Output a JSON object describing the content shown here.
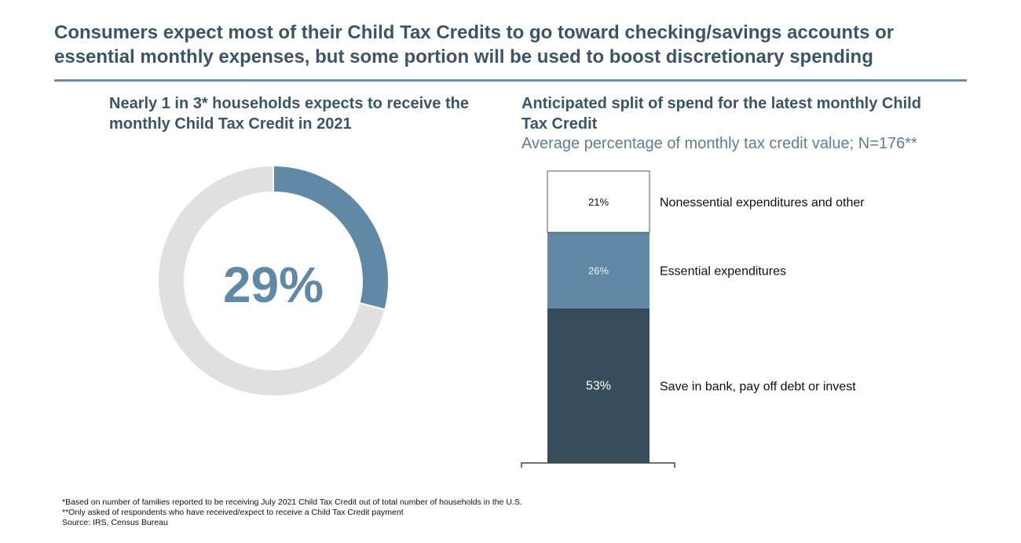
{
  "title": "Consumers expect most of their Child Tax Credits to go toward checking/savings accounts or essential monthly expenses, but some portion will be used to boost discretionary spending",
  "chart_data": [
    {
      "type": "pie",
      "style": "donut",
      "title": "Nearly 1 in 3* households expects to receive the monthly Child Tax Credit in 2021",
      "center_label": "29%",
      "values": [
        29,
        71
      ],
      "colors": [
        "#6189a6",
        "#e0e0e0"
      ]
    },
    {
      "type": "bar",
      "stacked": true,
      "title": "Anticipated split of spend for the latest monthly Child Tax Credit",
      "subtitle": "Average percentage of monthly tax credit value; N=176**",
      "series": [
        {
          "name": "Save in bank, pay off debt or invest",
          "values": [
            53
          ],
          "label": "53%",
          "color": "#374d5b",
          "label_color": "#ffffff"
        },
        {
          "name": "Essential expenditures",
          "values": [
            26
          ],
          "label": "26%",
          "color": "#6189a6",
          "label_color": "#e8eef3"
        },
        {
          "name": "Nonessential expenditures and other",
          "values": [
            21
          ],
          "label": "21%",
          "color": "#ffffff",
          "label_color": "#111111"
        }
      ],
      "ylim": [
        0,
        100
      ]
    }
  ],
  "footnotes": [
    "*Based on number of families reported to be receiving July 2021 Child Tax Credit out of total number of households in the U.S.",
    "**Only asked of respondents who have received/expect to receive a Child Tax Credit payment",
    "Source: IRS, Census Bureau"
  ]
}
